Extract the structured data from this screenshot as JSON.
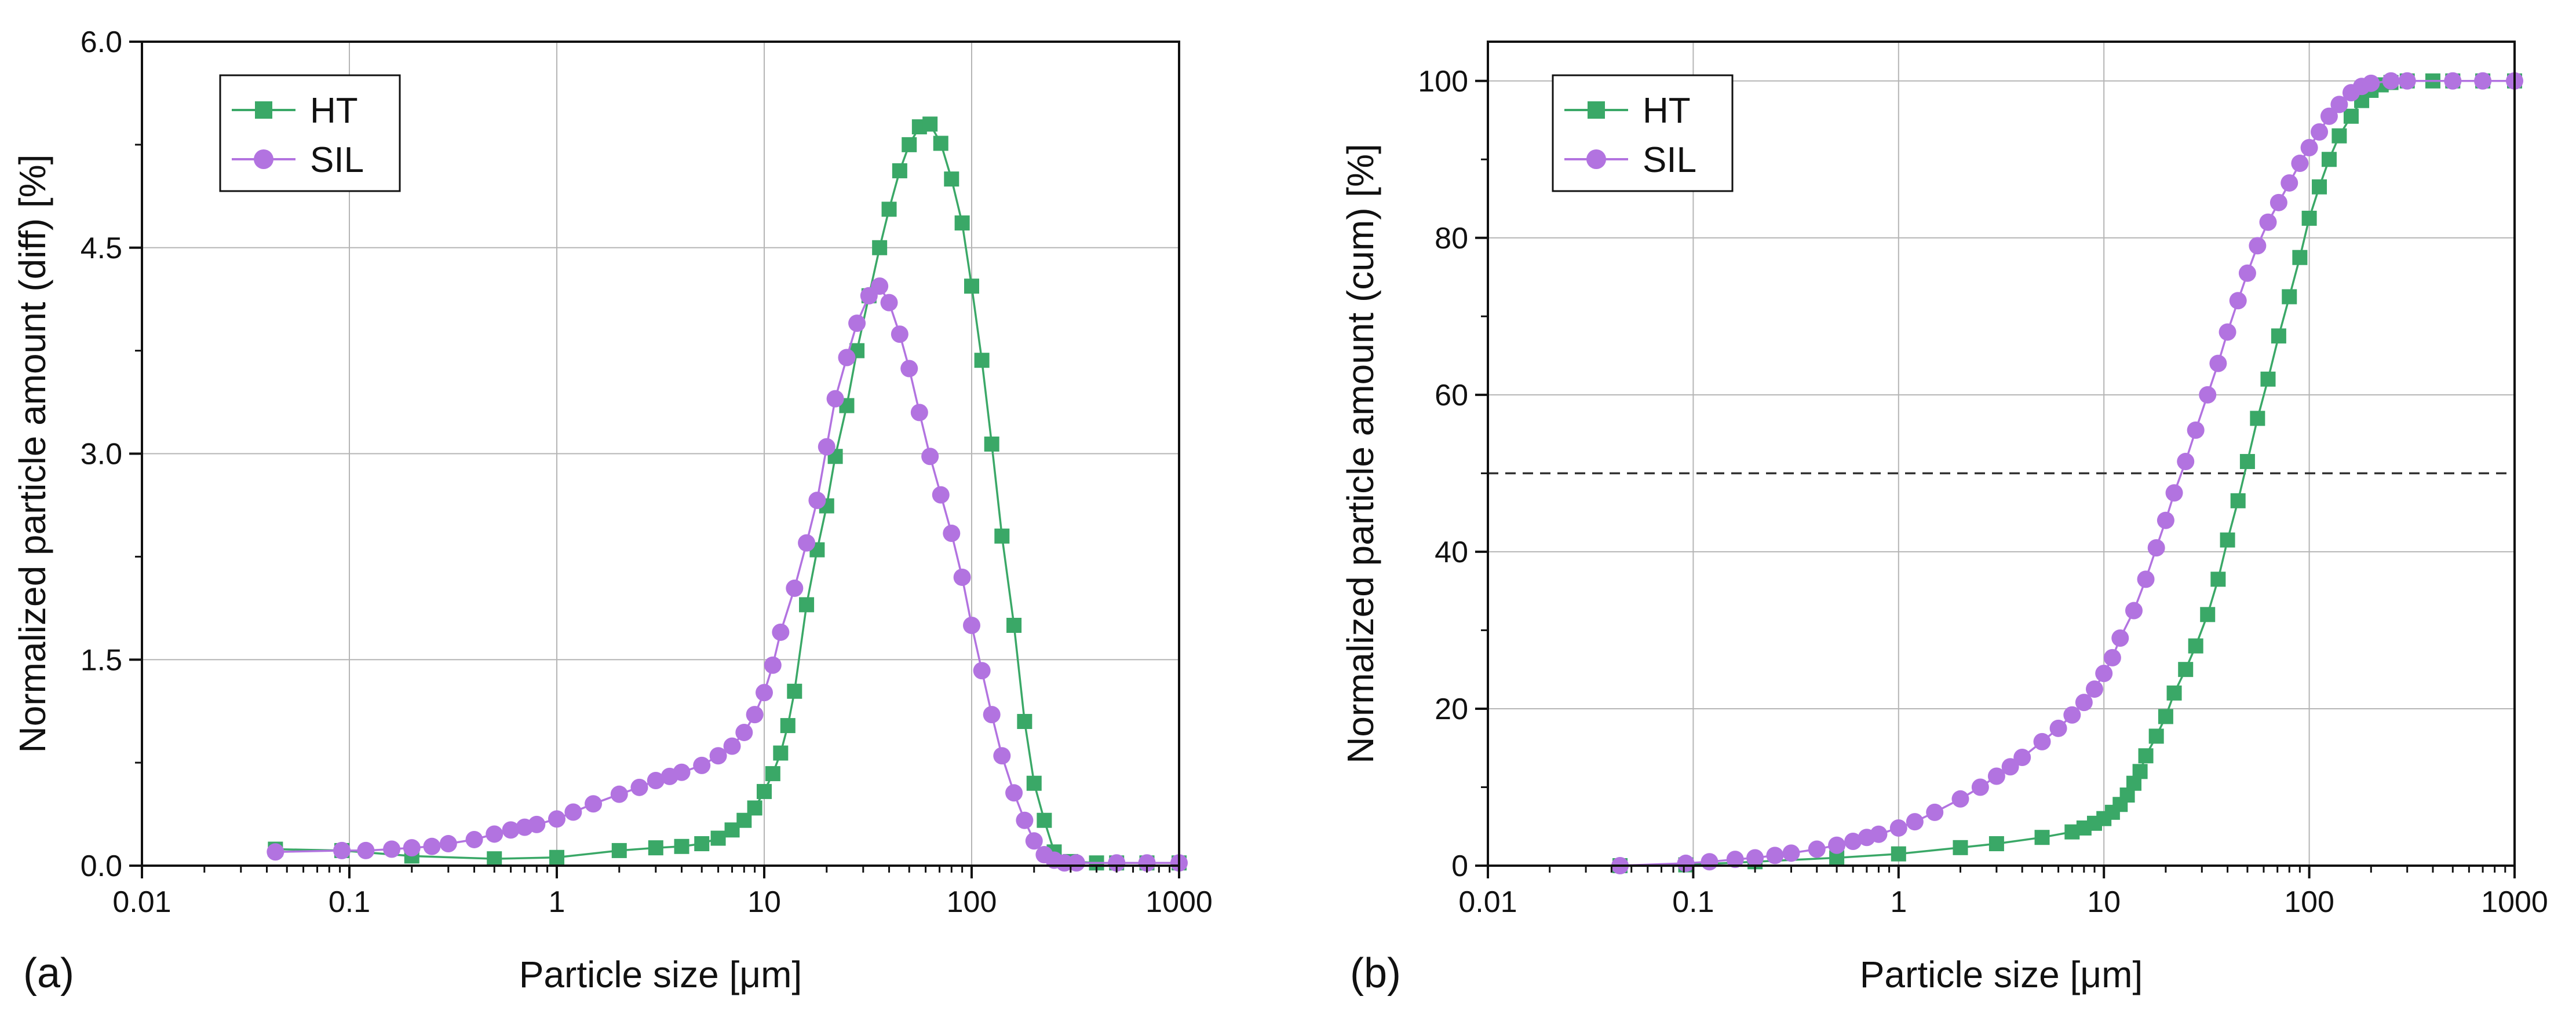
{
  "colors": {
    "HT": "#3aa867",
    "SIL": "#b273e0",
    "grid": "#b5b5b5",
    "axis": "#111111",
    "ref_line": "#333333"
  },
  "chart_data": [
    {
      "type": "line",
      "panel_label": "(a)",
      "xlabel": "Particle size [μm]",
      "ylabel": "Normalized particle amount (diff) [%]",
      "xscale": "log",
      "xlim": [
        0.01,
        1000
      ],
      "ylim": [
        0,
        6.0
      ],
      "xticks": [
        0.01,
        0.1,
        1,
        10,
        100,
        1000
      ],
      "xtick_labels": [
        "0.01",
        "0.1",
        "1",
        "10",
        "100",
        "1000"
      ],
      "yticks": [
        0,
        1.5,
        3.0,
        4.5,
        6.0
      ],
      "ytick_labels": [
        "0.0",
        "1.5",
        "3.0",
        "4.5",
        "6.0"
      ],
      "grid": true,
      "legend": "top-left",
      "series": [
        {
          "name": "HT",
          "marker": "square",
          "x": [
            0.044,
            0.092,
            0.2,
            0.5,
            1.0,
            2.0,
            3.0,
            4.0,
            5.0,
            6.0,
            7.0,
            8.0,
            9.0,
            10.0,
            11.0,
            12.0,
            13.0,
            14.0,
            16.0,
            18.0,
            20.0,
            22.0,
            25.0,
            28.0,
            32.0,
            36.0,
            40.0,
            45.0,
            50.0,
            56.0,
            63.0,
            71.0,
            80.0,
            90.0,
            100.0,
            112.0,
            125.0,
            140.0,
            160.0,
            180.0,
            200.0,
            224.0,
            250.0,
            300.0,
            400.0,
            500.0,
            700.0,
            1000.0
          ],
          "y": [
            0.12,
            0.11,
            0.07,
            0.05,
            0.06,
            0.11,
            0.13,
            0.14,
            0.16,
            0.2,
            0.26,
            0.33,
            0.42,
            0.54,
            0.67,
            0.82,
            1.02,
            1.27,
            1.9,
            2.3,
            2.62,
            2.98,
            3.35,
            3.75,
            4.15,
            4.5,
            4.78,
            5.06,
            5.25,
            5.38,
            5.4,
            5.26,
            5.0,
            4.68,
            4.22,
            3.68,
            3.07,
            2.4,
            1.75,
            1.05,
            0.6,
            0.33,
            0.1,
            0.03,
            0.02,
            0.02,
            0.02,
            0.02
          ]
        },
        {
          "name": "SIL",
          "marker": "circle",
          "x": [
            0.044,
            0.092,
            0.12,
            0.16,
            0.2,
            0.25,
            0.3,
            0.4,
            0.5,
            0.6,
            0.7,
            0.8,
            1.0,
            1.2,
            1.5,
            2.0,
            2.5,
            3.0,
            3.5,
            4.0,
            5.0,
            6.0,
            7.0,
            8.0,
            9.0,
            10.0,
            11.0,
            12.0,
            14.0,
            16.0,
            18.0,
            20.0,
            22.0,
            25.0,
            28.0,
            32.0,
            36.0,
            40.0,
            45.0,
            50.0,
            56.0,
            63.0,
            71.0,
            80.0,
            90.0,
            100.0,
            112.0,
            125.0,
            140.0,
            160.0,
            180.0,
            200.0,
            224.0,
            250.0,
            280.0,
            320.0,
            500.0,
            700.0,
            1000.0
          ],
          "y": [
            0.1,
            0.11,
            0.11,
            0.12,
            0.13,
            0.14,
            0.16,
            0.19,
            0.23,
            0.26,
            0.28,
            0.3,
            0.34,
            0.39,
            0.45,
            0.52,
            0.57,
            0.62,
            0.65,
            0.68,
            0.73,
            0.8,
            0.87,
            0.97,
            1.1,
            1.26,
            1.46,
            1.7,
            2.02,
            2.35,
            2.66,
            3.05,
            3.4,
            3.7,
            3.95,
            4.15,
            4.22,
            4.1,
            3.87,
            3.62,
            3.3,
            2.98,
            2.7,
            2.42,
            2.1,
            1.75,
            1.42,
            1.1,
            0.8,
            0.53,
            0.33,
            0.18,
            0.08,
            0.04,
            0.02,
            0.02,
            0.02,
            0.02,
            0.02
          ]
        }
      ]
    },
    {
      "type": "line",
      "panel_label": "(b)",
      "xlabel": "Particle size [μm]",
      "ylabel": "Normalized particle amount (cum) [%]",
      "xscale": "log",
      "xlim": [
        0.01,
        1000
      ],
      "ylim": [
        0,
        105
      ],
      "xticks": [
        0.01,
        0.1,
        1,
        10,
        100,
        1000
      ],
      "xtick_labels": [
        "0.01",
        "0.1",
        "1",
        "10",
        "100",
        "1000"
      ],
      "yticks": [
        0,
        20,
        40,
        60,
        80,
        100
      ],
      "ytick_labels": [
        "0",
        "20",
        "40",
        "60",
        "80",
        "100"
      ],
      "grid": true,
      "legend": "top-left",
      "reference_line_y": 50,
      "series": [
        {
          "name": "HT",
          "marker": "square",
          "x": [
            0.044,
            0.092,
            0.2,
            0.5,
            1.0,
            2.0,
            3.0,
            5.0,
            7.0,
            8.0,
            9.0,
            10.0,
            11.0,
            12.0,
            13.0,
            14.0,
            15.0,
            16.0,
            18.0,
            20.0,
            22.0,
            25.0,
            28.0,
            32.0,
            36.0,
            40.0,
            45.0,
            50.0,
            56.0,
            63.0,
            71.0,
            80.0,
            90.0,
            100.0,
            112.0,
            125.0,
            140.0,
            160.0,
            180.0,
            200.0,
            224.0,
            250.0,
            300.0,
            400.0,
            500.0,
            700.0,
            1000.0
          ],
          "y": [
            0.0,
            0.1,
            0.5,
            1.0,
            1.5,
            2.3,
            2.8,
            3.6,
            4.3,
            4.8,
            5.4,
            6.0,
            6.8,
            7.8,
            9.0,
            10.5,
            12.0,
            14.0,
            16.5,
            19.0,
            22.0,
            25.0,
            28.0,
            32.0,
            36.5,
            41.5,
            46.5,
            51.5,
            57.0,
            62.0,
            67.5,
            72.5,
            77.5,
            82.5,
            86.5,
            90.0,
            93.0,
            95.5,
            97.5,
            98.8,
            99.5,
            99.8,
            100.0,
            100.0,
            100.0,
            100.0,
            100.0
          ]
        },
        {
          "name": "SIL",
          "marker": "circle",
          "x": [
            0.044,
            0.092,
            0.12,
            0.16,
            0.2,
            0.25,
            0.3,
            0.4,
            0.5,
            0.6,
            0.7,
            0.8,
            1.0,
            1.2,
            1.5,
            2.0,
            2.5,
            3.0,
            3.5,
            4.0,
            5.0,
            6.0,
            7.0,
            8.0,
            9.0,
            10.0,
            11.0,
            12.0,
            14.0,
            16.0,
            18.0,
            20.0,
            22.0,
            25.0,
            28.0,
            32.0,
            36.0,
            40.0,
            45.0,
            50.0,
            56.0,
            63.0,
            71.0,
            80.0,
            90.0,
            100.0,
            112.0,
            125.0,
            140.0,
            160.0,
            180.0,
            200.0,
            250.0,
            300.0,
            500.0,
            700.0,
            1000.0
          ],
          "y": [
            0.0,
            0.3,
            0.5,
            0.8,
            1.0,
            1.3,
            1.6,
            2.1,
            2.6,
            3.1,
            3.6,
            4.0,
            4.8,
            5.6,
            6.8,
            8.5,
            10.0,
            11.4,
            12.6,
            13.8,
            15.8,
            17.5,
            19.2,
            20.8,
            22.5,
            24.5,
            26.5,
            29.0,
            32.5,
            36.5,
            40.5,
            44.0,
            47.5,
            51.5,
            55.5,
            60.0,
            64.0,
            68.0,
            72.0,
            75.5,
            79.0,
            82.0,
            84.5,
            87.0,
            89.5,
            91.5,
            93.5,
            95.5,
            97.0,
            98.5,
            99.3,
            99.7,
            100.0,
            100.0,
            100.0,
            100.0,
            100.0
          ]
        }
      ]
    }
  ]
}
